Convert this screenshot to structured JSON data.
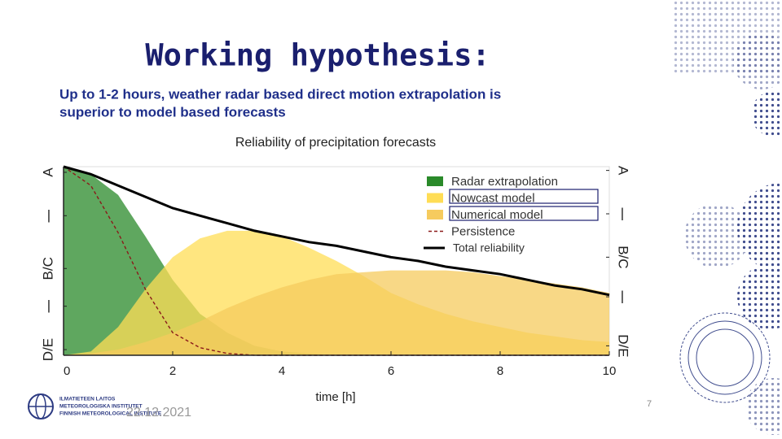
{
  "slide": {
    "title": "Working hypothesis:",
    "subtitle_lines": [
      "Up to 1-2 hours, weather radar based direct motion extrapolation is",
      "superior to model based forecasts"
    ],
    "footer": {
      "logo_lines": [
        "ILMATIETEEN LAITOS",
        "METEOROLOGISKA INSTITUTET",
        "FINNISH METEOROLOGICAL INSTITUTE"
      ],
      "date": "22.12.2021",
      "page_number": 7
    }
  },
  "chart_data": {
    "type": "area",
    "title": "Reliability of precipitation forecasts",
    "x_label": "time [h]",
    "x": [
      0,
      0.5,
      1,
      1.5,
      2,
      2.5,
      3,
      3.5,
      4,
      4.5,
      5,
      5.5,
      6,
      6.5,
      7,
      7.5,
      8,
      8.5,
      9,
      9.5,
      10
    ],
    "xlim": [
      0,
      10
    ],
    "xticks": [
      0,
      2,
      4,
      6,
      8,
      10
    ],
    "ylim": [
      0,
      1
    ],
    "yticks": [
      {
        "value": 0.97,
        "label": "A"
      },
      {
        "value": 0.74,
        "label": "|"
      },
      {
        "value": 0.46,
        "label": "B/C"
      },
      {
        "value": 0.26,
        "label": "|"
      },
      {
        "value": 0.03,
        "label": "D/E"
      }
    ],
    "y2lim": [
      0,
      1
    ],
    "y2ticks": [
      {
        "value": 0.98,
        "label": "A"
      },
      {
        "value": 0.75,
        "label": "|"
      },
      {
        "value": 0.52,
        "label": "B/C"
      },
      {
        "value": 0.31,
        "label": "|"
      },
      {
        "value": 0.05,
        "label": "D/E"
      }
    ],
    "series": [
      {
        "name": "Radar extrapolation",
        "color": "#2a8a2a",
        "style": "area",
        "values": [
          1.0,
          0.96,
          0.85,
          0.63,
          0.4,
          0.22,
          0.12,
          0.05,
          0.02,
          0.01,
          0,
          0,
          0,
          0,
          0,
          0,
          0,
          0,
          0,
          0,
          0
        ]
      },
      {
        "name": "Nowcast model",
        "color": "#ffdd55",
        "style": "area",
        "values": [
          0,
          0.02,
          0.15,
          0.35,
          0.52,
          0.62,
          0.66,
          0.66,
          0.63,
          0.57,
          0.5,
          0.42,
          0.33,
          0.27,
          0.22,
          0.18,
          0.15,
          0.12,
          0.1,
          0.08,
          0.07
        ]
      },
      {
        "name": "Numerical model",
        "color": "#f6cb5e",
        "style": "area",
        "values": [
          0,
          0.01,
          0.03,
          0.07,
          0.12,
          0.18,
          0.25,
          0.31,
          0.36,
          0.4,
          0.43,
          0.44,
          0.45,
          0.45,
          0.45,
          0.44,
          0.42,
          0.4,
          0.38,
          0.36,
          0.33
        ]
      },
      {
        "name": "Persistence",
        "color": "#8b1a1a",
        "style": "dashed",
        "values": [
          1.0,
          0.9,
          0.65,
          0.35,
          0.12,
          0.04,
          0.01,
          0,
          0,
          0,
          0,
          0,
          0,
          0,
          0,
          0,
          0,
          0,
          0,
          0,
          0
        ]
      },
      {
        "name": "Total reliability",
        "color": "#000000",
        "style": "line",
        "values": [
          1.0,
          0.96,
          0.9,
          0.84,
          0.78,
          0.74,
          0.7,
          0.66,
          0.63,
          0.6,
          0.58,
          0.55,
          0.52,
          0.5,
          0.47,
          0.45,
          0.43,
          0.4,
          0.37,
          0.35,
          0.32
        ]
      }
    ]
  }
}
